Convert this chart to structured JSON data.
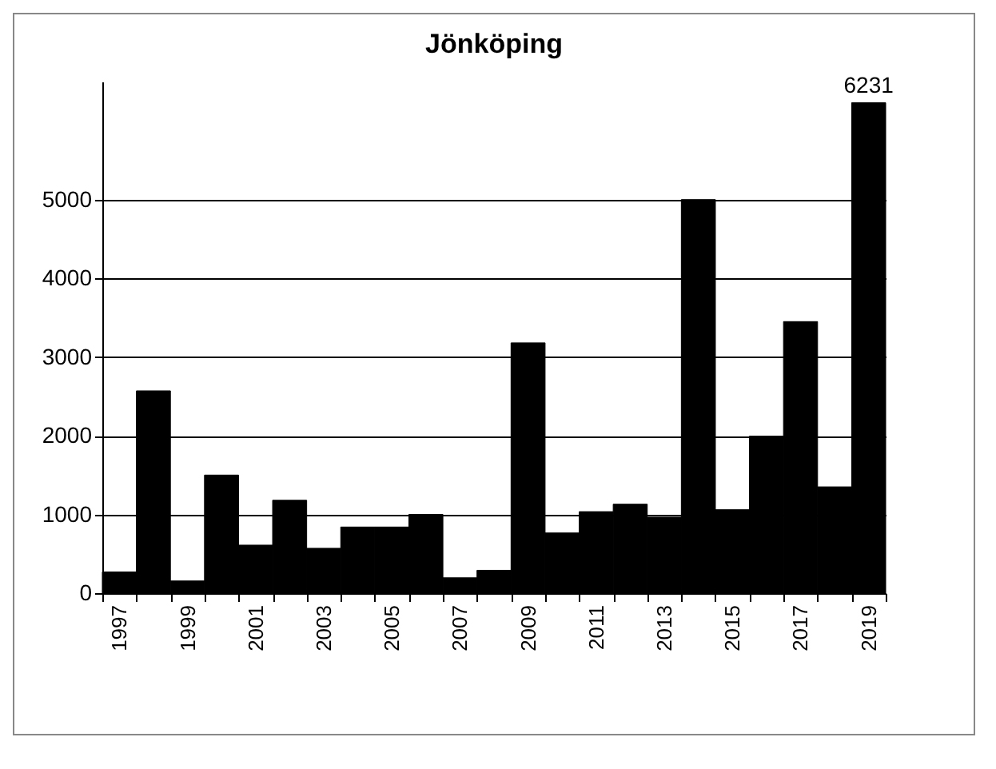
{
  "chart_data": {
    "type": "bar",
    "title": "Jönköping",
    "categories": [
      "1997",
      null,
      "1999",
      null,
      "2001",
      null,
      "2003",
      null,
      "2005",
      null,
      "2007",
      null,
      "2009",
      null,
      "2011",
      null,
      "2013",
      null,
      "2015",
      null,
      "2017",
      null,
      "2019"
    ],
    "values": [
      270,
      2570,
      155,
      1500,
      610,
      1180,
      570,
      840,
      840,
      1000,
      195,
      290,
      3180,
      765,
      1035,
      1130,
      965,
      5000,
      1060,
      1995,
      3450,
      1350,
      6231
    ],
    "value_labels": [
      null,
      null,
      null,
      null,
      null,
      null,
      null,
      null,
      null,
      null,
      null,
      null,
      null,
      null,
      null,
      null,
      null,
      null,
      null,
      null,
      null,
      null,
      "6231"
    ],
    "color": "#000000",
    "ylim": [
      0,
      6500
    ],
    "yticks": [
      0,
      1000,
      2000,
      3000,
      4000,
      5000
    ],
    "grid": "y"
  }
}
